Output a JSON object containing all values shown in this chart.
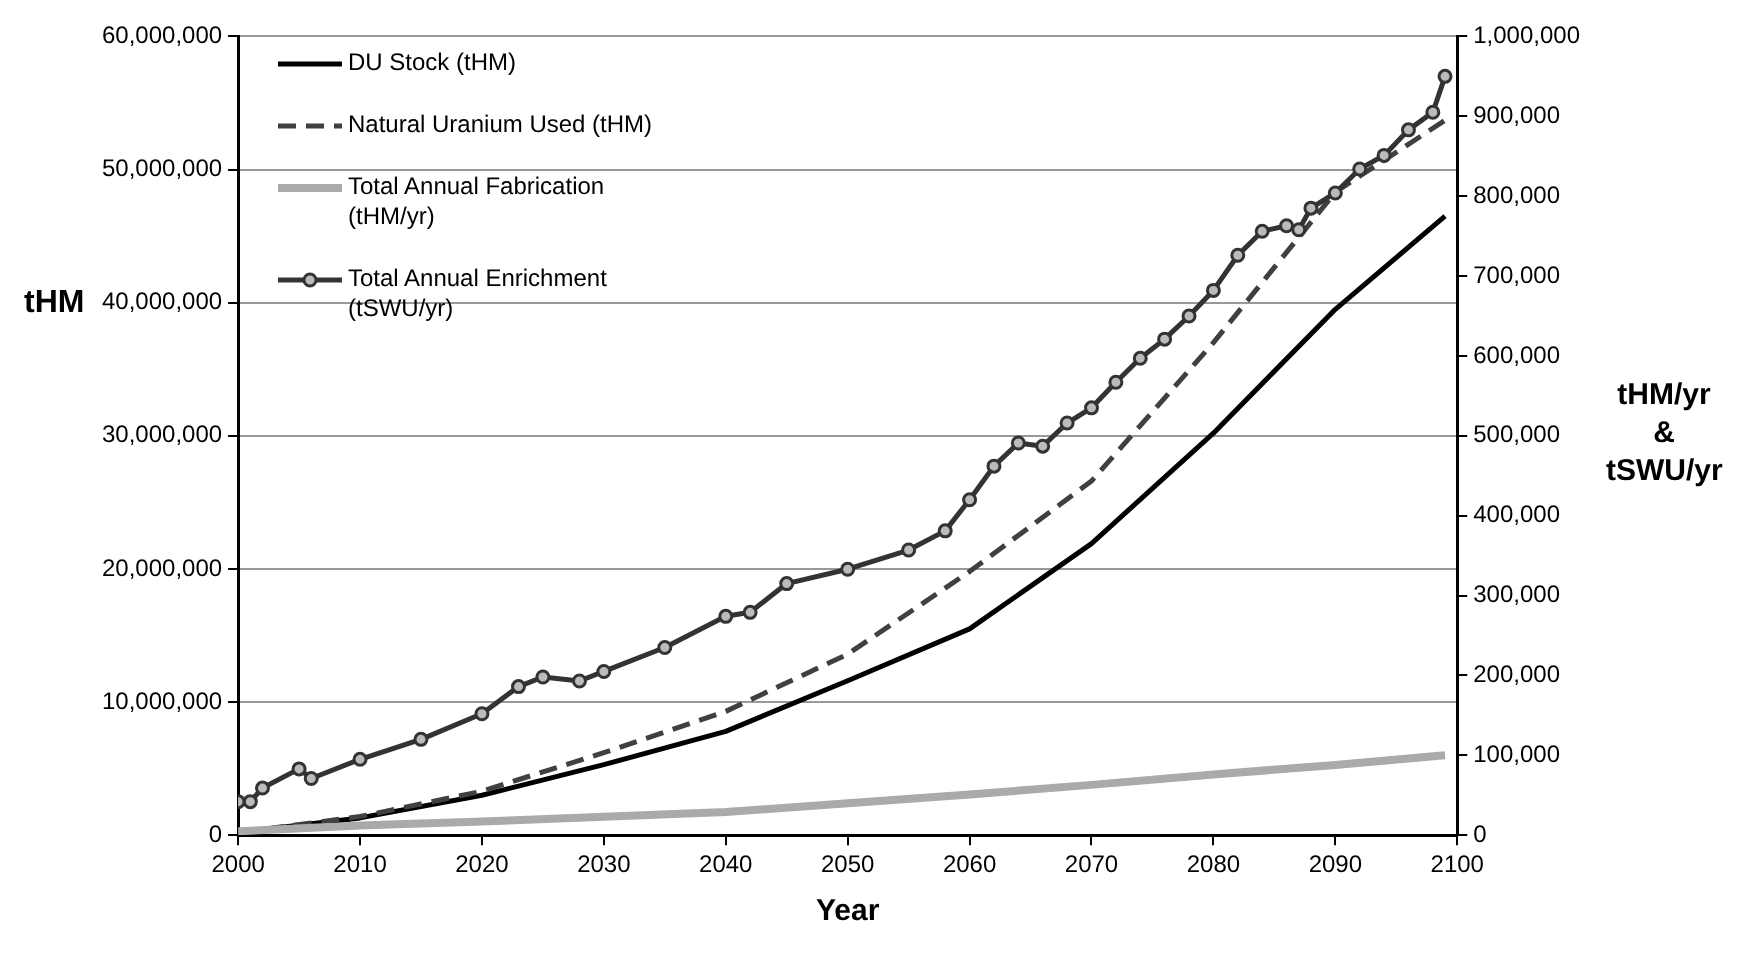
{
  "chart_data": {
    "type": "line",
    "xlabel": "Year",
    "ylabel": "tHM",
    "y2label": "tHM/yr & tSWU/yr",
    "xlim": [
      2000,
      2100
    ],
    "xticks": [
      2000,
      2010,
      2020,
      2030,
      2040,
      2050,
      2060,
      2070,
      2080,
      2090,
      2100
    ],
    "ylim": [
      0,
      60000000
    ],
    "yticks": [
      0,
      {
        "value": 10000000,
        "label": "10,000,000"
      },
      {
        "value": 20000000,
        "label": "20,000,000"
      },
      {
        "value": 30000000,
        "label": "30,000,000"
      },
      {
        "value": 40000000,
        "label": "40,000,000"
      },
      {
        "value": 50000000,
        "label": "50,000,000"
      },
      {
        "value": 60000000,
        "label": "60,000,000"
      }
    ],
    "y2lim": [
      0,
      1000000
    ],
    "y2ticks": [
      0,
      {
        "value": 100000,
        "label": "100,000"
      },
      {
        "value": 200000,
        "label": "200,000"
      },
      {
        "value": 300000,
        "label": "300,000"
      },
      {
        "value": 400000,
        "label": "400,000"
      },
      {
        "value": 500000,
        "label": "500,000"
      },
      {
        "value": 600000,
        "label": "600,000"
      },
      {
        "value": 700000,
        "label": "700,000"
      },
      {
        "value": 800000,
        "label": "800,000"
      },
      {
        "value": 900000,
        "label": "900,000"
      },
      {
        "value": 1000000,
        "label": "1,000,000"
      }
    ],
    "grid": "y",
    "legend": "top left",
    "series": [
      {
        "name": "DU Stock (tHM)",
        "color": "#000000",
        "line_style": "solid",
        "marker": "none",
        "x": [
          2000,
          2010,
          2020,
          2030,
          2040,
          2050,
          2060,
          2070,
          2080,
          2090,
          2099
        ],
        "values": [
          200000,
          1300000,
          3000000,
          5300000,
          7800000,
          11600000,
          15500000,
          21900000,
          30200000,
          39500000,
          46500000
        ]
      },
      {
        "name": "Natural Uranium Used (tHM)",
        "color": "#404040",
        "line_style": "dashed",
        "marker": "none",
        "x": [
          2000,
          2010,
          2020,
          2030,
          2040,
          2050,
          2060,
          2070,
          2080,
          2090,
          2099
        ],
        "values": [
          200000,
          1400000,
          3300000,
          6200000,
          9300000,
          13600000,
          19800000,
          26600000,
          37000000,
          48300000,
          53700000
        ]
      },
      {
        "name": "Total Annual Fabrication (tHM/yr)",
        "color": "#aaaaaa",
        "line_style": "solid",
        "marker": "none",
        "axis": "y2",
        "x": [
          2000,
          2010,
          2020,
          2030,
          2040,
          2050,
          2060,
          2070,
          2080,
          2090,
          2099
        ],
        "values": [
          5000,
          12000,
          17000,
          23000,
          29000,
          40000,
          51000,
          63000,
          76000,
          88000,
          100000
        ]
      },
      {
        "name": "Total Annual Enrichment (tSWU/yr)",
        "color": "#333333",
        "line_style": "solid",
        "marker": "circle",
        "axis": "y2",
        "x": [
          2000,
          2001,
          2002,
          2005,
          2006,
          2010,
          2015,
          2020,
          2023,
          2025,
          2028,
          2030,
          2035,
          2040,
          2042,
          2045,
          2050,
          2055,
          2058,
          2060,
          2062,
          2064,
          2066,
          2068,
          2070,
          2072,
          2074,
          2076,
          2078,
          2080,
          2082,
          2084,
          2086,
          2087,
          2088,
          2090,
          2092,
          2094,
          2096,
          2098,
          2099
        ],
        "values": [
          42000,
          42000,
          59000,
          83000,
          71000,
          95000,
          120000,
          152000,
          186000,
          198000,
          193000,
          205000,
          235000,
          274000,
          279000,
          315000,
          333000,
          357000,
          381000,
          420000,
          462000,
          491000,
          487000,
          516000,
          535000,
          567000,
          597000,
          621000,
          650000,
          682000,
          726000,
          756000,
          763000,
          758000,
          785000,
          804000,
          834000,
          851000,
          883000,
          905000,
          950000
        ]
      }
    ]
  }
}
